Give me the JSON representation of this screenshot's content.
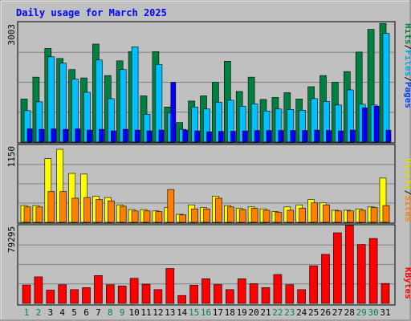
{
  "chart_data": {
    "type": "bar",
    "title": "Daily usage for March 2025",
    "days": [
      "1",
      "2",
      "3",
      "4",
      "5",
      "6",
      "7",
      "8",
      "9",
      "10",
      "11",
      "12",
      "13",
      "14",
      "15",
      "16",
      "17",
      "18",
      "19",
      "20",
      "21",
      "22",
      "23",
      "24",
      "25",
      "26",
      "27",
      "28",
      "29",
      "30",
      "31"
    ],
    "weekend_days": [
      1,
      2,
      8,
      9,
      15,
      16,
      22,
      23,
      29,
      30
    ],
    "panels": [
      {
        "id": "hits-files-pages",
        "ymax_label": "3003",
        "ymax": 3003,
        "side_labels": [
          "Hits",
          "Files",
          "Pages"
        ],
        "series": [
          {
            "name": "Hits",
            "color": "#008040",
            "values": [
              1080,
              1630,
              2350,
              2100,
              1820,
              1610,
              2460,
              1670,
              2040,
              2270,
              1160,
              2270,
              880,
              490,
              1030,
              1160,
              1500,
              2030,
              1270,
              1630,
              1070,
              1120,
              1240,
              1080,
              1390,
              1670,
              1500,
              1770,
              2260,
              2830,
              2980
            ]
          },
          {
            "name": "Files",
            "color": "#00c0ff",
            "values": [
              790,
              1010,
              2140,
              1980,
              1580,
              1250,
              2060,
              1090,
              1820,
              2390,
              700,
              1950,
              730,
              320,
              880,
              830,
              1000,
              1050,
              900,
              960,
              780,
              830,
              820,
              800,
              1090,
              1020,
              930,
              1310,
              950,
              930,
              2730
            ]
          },
          {
            "name": "Pages",
            "color": "#0000ff",
            "values": [
              330,
              320,
              330,
              320,
              330,
              300,
              320,
              280,
              320,
              300,
              280,
              300,
              1500,
              300,
              280,
              260,
              270,
              270,
              280,
              290,
              290,
              290,
              290,
              290,
              300,
              290,
              280,
              300,
              860,
              900,
              300
            ]
          }
        ]
      },
      {
        "id": "visits-sites",
        "ymax_label": "1150",
        "ymax": 1150,
        "side_labels": [
          "Visits",
          "Sites"
        ],
        "series": [
          {
            "name": "Visits",
            "color": "#ffff00",
            "values": [
              250,
              250,
              950,
              1090,
              730,
              720,
              390,
              370,
              260,
              190,
              190,
              170,
              220,
              120,
              260,
              220,
              390,
              250,
              210,
              230,
              200,
              160,
              230,
              260,
              340,
              290,
              180,
              180,
              200,
              230,
              660
            ]
          },
          {
            "name": "Sites",
            "color": "#ff8000",
            "values": [
              230,
              230,
              460,
              460,
              360,
              370,
              340,
              320,
              240,
              170,
              170,
              160,
              490,
              110,
              200,
              200,
              360,
              230,
              190,
              210,
              180,
              150,
              180,
              210,
              290,
              260,
              170,
              170,
              180,
              220,
              250
            ]
          }
        ]
      },
      {
        "id": "kbytes",
        "ymax_label": "79295",
        "ymax": 79295,
        "side_labels": [
          "KBytes"
        ],
        "series": [
          {
            "name": "KBytes",
            "color": "#ff0000",
            "values": [
              18700,
              27000,
              13500,
              19000,
              14000,
              16000,
              28300,
              19000,
              17700,
              25500,
              19500,
              14000,
              35500,
              8000,
              18500,
              25000,
              19200,
              14000,
              25000,
              20000,
              16000,
              29400,
              19000,
              14000,
              38300,
              49900,
              71900,
              79295,
              60000,
              66100,
              20300
            ]
          }
        ]
      }
    ]
  }
}
